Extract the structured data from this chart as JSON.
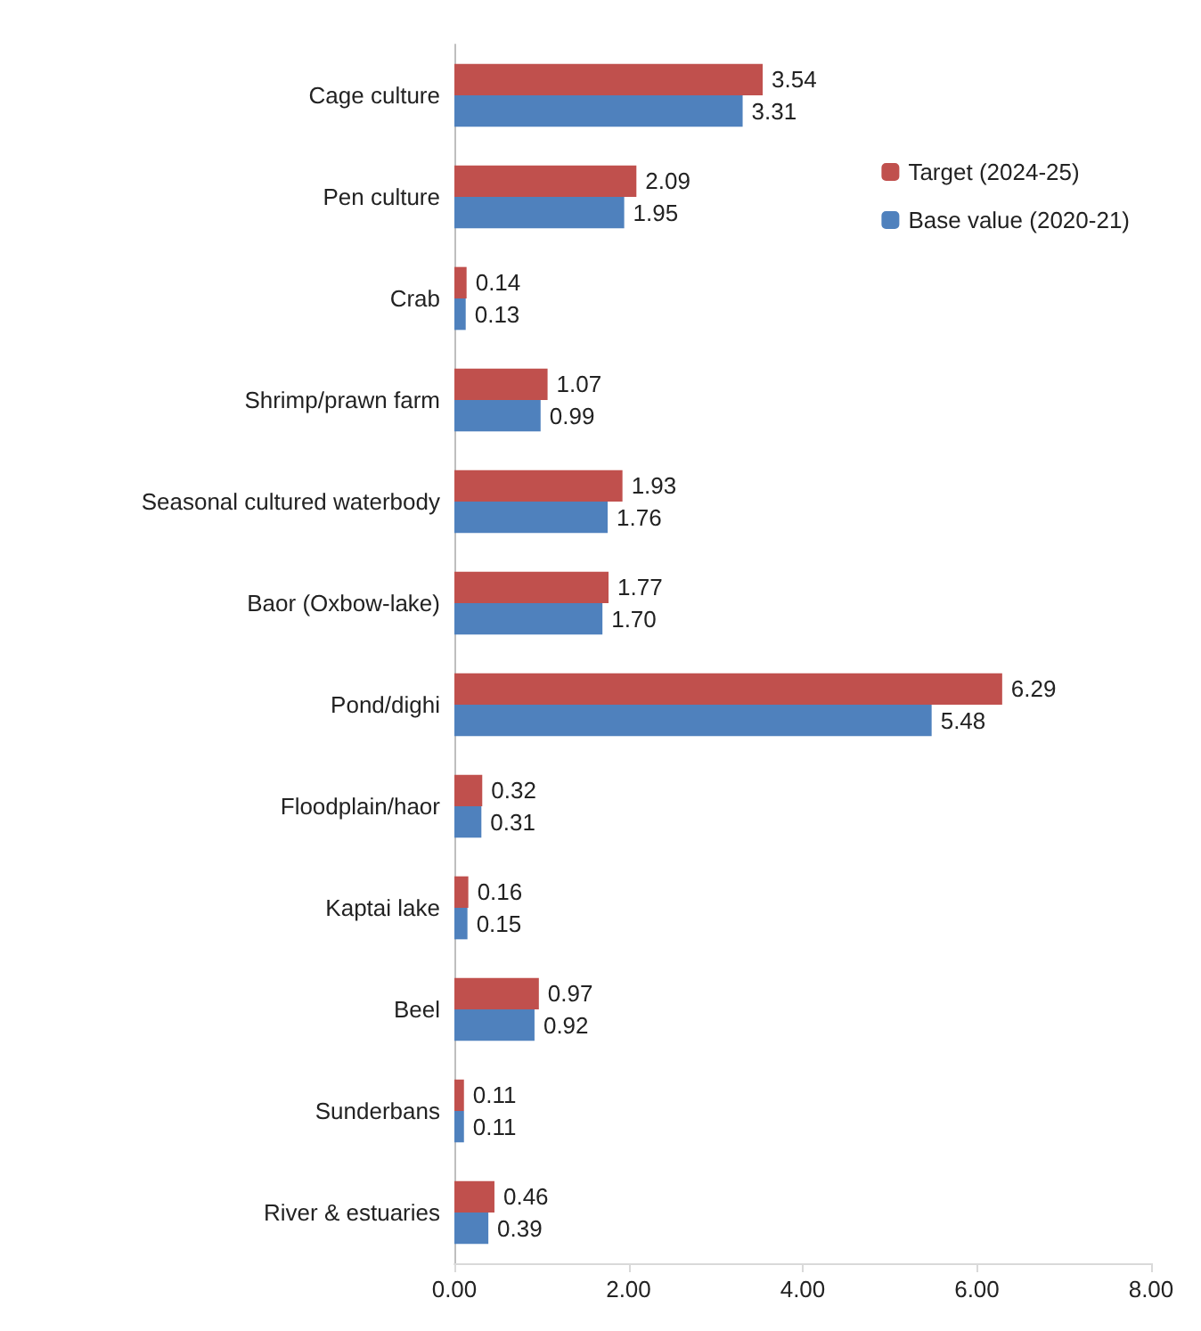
{
  "chart_data": {
    "type": "bar",
    "orientation": "horizontal",
    "categories": [
      "Cage culture",
      "Pen culture",
      "Crab",
      "Shrimp/prawn farm",
      "Seasonal cultured waterbody",
      "Baor (Oxbow-lake)",
      "Pond/dighi",
      "Floodplain/haor",
      "Kaptai lake",
      "Beel",
      "Sunderbans",
      "River & estuaries"
    ],
    "series": [
      {
        "name": "Target (2024-25)",
        "color": "#c0504d",
        "values": [
          3.54,
          2.09,
          0.14,
          1.07,
          1.93,
          1.77,
          6.29,
          0.32,
          0.16,
          0.97,
          0.11,
          0.46
        ],
        "value_labels": [
          "3.54",
          "2.09",
          "0.14",
          "1.07",
          "1.93",
          "1.77",
          "6.29",
          "0.32",
          "0.16",
          "0.97",
          "0.11",
          "0.46"
        ]
      },
      {
        "name": "Base value (2020-21)",
        "color": "#4f81bd",
        "values": [
          3.31,
          1.95,
          0.13,
          0.99,
          1.76,
          1.7,
          5.48,
          0.31,
          0.15,
          0.92,
          0.11,
          0.39
        ],
        "value_labels": [
          "3.31",
          "1.95",
          "0.13",
          "0.99",
          "1.76",
          "1.70",
          "5.48",
          "0.31",
          "0.15",
          "0.92",
          "0.11",
          "0.39"
        ]
      }
    ],
    "xlim": [
      0,
      8
    ],
    "xticks": [
      {
        "value": 0,
        "label": "0.00"
      },
      {
        "value": 2,
        "label": "2.00"
      },
      {
        "value": 4,
        "label": "4.00"
      },
      {
        "value": 6,
        "label": "6.00"
      },
      {
        "value": 8,
        "label": "8.00"
      }
    ],
    "grid": false,
    "legend": "top right"
  }
}
